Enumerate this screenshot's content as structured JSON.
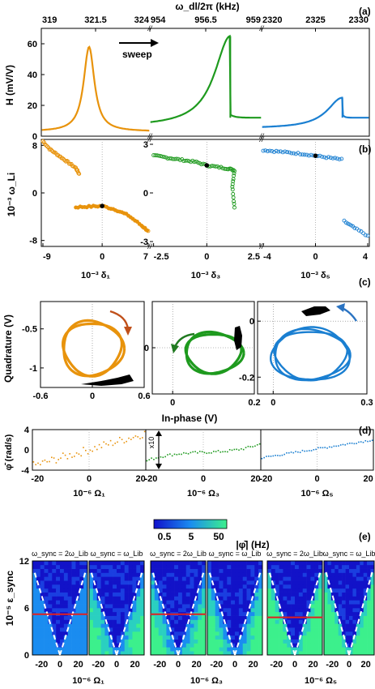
{
  "colors": {
    "orange": "#e8930c",
    "green": "#1e9a1e",
    "blue": "#1a7fd1",
    "black": "#000000",
    "red": "#e02020",
    "heat_low": "#1010cc",
    "heat_mid": "#1a8cf0",
    "heat_high": "#3cf08c"
  },
  "chart_data": [
    {
      "panel": "(a)",
      "type": "line",
      "top_axis_label": "ω_dl/2π (kHz)",
      "ylabel": "H (mV/V)",
      "ylim": [
        0,
        70
      ],
      "yticks": [
        "0",
        "20",
        "40",
        "60"
      ],
      "annotation": "sweep",
      "subpanels": [
        {
          "color": "orange",
          "xlim": [
            319,
            324
          ],
          "xticks": [
            "319",
            "321.5",
            "324"
          ],
          "peak": {
            "x": 321.2,
            "y": 58
          },
          "edge": [
            3,
            3
          ]
        },
        {
          "color": "green",
          "xlim": [
            954,
            959
          ],
          "xticks": [
            "954",
            "956.5",
            "959"
          ],
          "peak": {
            "x": 957.6,
            "y": 65
          },
          "edge": [
            6,
            12
          ]
        },
        {
          "color": "blue",
          "xlim": [
            2320,
            2330
          ],
          "xticks": [
            "2320",
            "2325",
            "2330"
          ],
          "peak": {
            "x": 2327.5,
            "y": 25
          },
          "edge": [
            5,
            12
          ]
        }
      ]
    },
    {
      "panel": "(b)",
      "type": "scatter",
      "ylabel": "10⁻³ ω_Li",
      "subpanels": [
        {
          "color": "orange",
          "xlabel": "10⁻³ δ₁",
          "xlim": [
            -9,
            7
          ],
          "xticks": [
            "-9",
            "0",
            "7"
          ],
          "ylim": [
            -9,
            9
          ],
          "yticks": [
            "8",
            "0",
            "-8"
          ],
          "points": [
            [
              -9,
              8.7
            ],
            [
              -8,
              7.4
            ],
            [
              -7,
              6.6
            ],
            [
              -6,
              5.8
            ],
            [
              -5,
              5.0
            ],
            [
              -4,
              4.2
            ],
            [
              -3.5,
              3.2
            ],
            [
              -4,
              -2.4
            ],
            [
              -2,
              -2.3
            ],
            [
              0,
              -2.2
            ],
            [
              2,
              -2.8
            ],
            [
              4,
              -3.8
            ],
            [
              6,
              -5.5
            ],
            [
              7,
              -6.4
            ]
          ]
        },
        {
          "color": "green",
          "xlabel": "10⁻³ δ₃",
          "xlim": [
            -2.6,
            2.5
          ],
          "xticks": [
            "-2.5",
            "0",
            "2.5"
          ],
          "ylim": [
            -3.3,
            3.3
          ],
          "yticks": [
            "3",
            "0",
            "-3"
          ],
          "points": [
            [
              -2.5,
              2.3
            ],
            [
              -2,
              2.2
            ],
            [
              -1.5,
              2.1
            ],
            [
              -1,
              2.0
            ],
            [
              -0.5,
              1.9
            ],
            [
              0,
              1.7
            ],
            [
              0.5,
              1.6
            ],
            [
              1,
              1.5
            ],
            [
              1.3,
              1.4
            ],
            [
              1.2,
              0.4
            ],
            [
              1.3,
              -0.9
            ]
          ]
        },
        {
          "color": "blue",
          "xlabel": "10⁻³ δ₅",
          "xlim": [
            -4,
            4
          ],
          "xticks": [
            "-4",
            "0",
            "4"
          ],
          "ylim": [
            -8.5,
            8.5
          ],
          "yticks": [],
          "points": [
            [
              -4,
              6.8
            ],
            [
              -3,
              6.6
            ],
            [
              -2,
              6.4
            ],
            [
              -1,
              6.2
            ],
            [
              0,
              5.9
            ],
            [
              1,
              5.6
            ],
            [
              2,
              5.3
            ],
            [
              2.2,
              -4.5
            ],
            [
              3,
              -5.6
            ],
            [
              4,
              -6.8
            ]
          ]
        }
      ]
    },
    {
      "panel": "(c)",
      "type": "scatter",
      "xlabel": "In-phase (V)",
      "ylabel": "Quadrature (V)",
      "subpanels": [
        {
          "color": "orange",
          "xlim": [
            -0.6,
            0.6
          ],
          "xticks": [
            "-0.6",
            "0",
            "0.6"
          ],
          "ylim": [
            -1.25,
            -0.15
          ],
          "yticks": [
            "-0.5",
            "-1"
          ],
          "center": [
            0.0,
            -0.75
          ],
          "radius": [
            0.35,
            0.35
          ]
        },
        {
          "color": "green",
          "xlim": [
            -0.05,
            0.2
          ],
          "xticks": [
            "0",
            "0.2"
          ],
          "ylim": [
            -0.9,
            0.9
          ],
          "yticks": [
            "0"
          ],
          "center": [
            0.1,
            -0.1
          ],
          "radius": [
            0.07,
            0.4
          ]
        },
        {
          "color": "blue",
          "xlim": [
            -0.05,
            0.3
          ],
          "xticks": [
            "0",
            "0.3"
          ],
          "ylim": [
            -0.26,
            0.07
          ],
          "yticks": [
            "0",
            "-0.2"
          ],
          "center": [
            0.12,
            -0.12
          ],
          "radius": [
            0.12,
            0.09
          ]
        }
      ]
    },
    {
      "panel": "(d)",
      "type": "scatter",
      "ylabel": "φ̄̇ (rad/s)",
      "ylim": [
        -4,
        4
      ],
      "yticks": [
        "4",
        "0",
        "-4"
      ],
      "scale_label": "x10",
      "subpanels": [
        {
          "color": "orange",
          "xlabel": "10⁻⁶ Ω₁",
          "xlim": [
            -22,
            22
          ],
          "xticks": [
            "-20",
            "0",
            "20"
          ]
        },
        {
          "color": "green",
          "xlabel": "10⁻⁶ Ω₃",
          "xlim": [
            -22,
            22
          ],
          "xticks": [
            "-20",
            "0",
            "20"
          ]
        },
        {
          "color": "blue",
          "xlabel": "10⁻⁶ Ω₅",
          "xlim": [
            -22,
            22
          ],
          "xticks": [
            "-20",
            "0",
            "20"
          ]
        }
      ]
    },
    {
      "panel": "(e)",
      "type": "heatmap",
      "colorbar_ticks": [
        "0.5",
        "5",
        "50"
      ],
      "colorbar_label": "|φ̄̇| (Hz)",
      "ylabel": "10⁻⁵ ε_sync",
      "ylim": [
        0,
        12
      ],
      "yticks": [
        "12",
        "6",
        "0"
      ],
      "column_titles": [
        "ω_sync = 2ω_Lib",
        "ω_sync = ω_Lib"
      ],
      "xticks": [
        "-20",
        "0",
        "20"
      ],
      "groups": [
        {
          "xlabel": "10⁻⁶ Ω₁",
          "threshold": 5.2
        },
        {
          "xlabel": "10⁻⁶ Ω₃",
          "threshold": 5.2
        },
        {
          "xlabel": "10⁻⁶ Ω₅",
          "threshold": 4.8
        }
      ]
    }
  ]
}
